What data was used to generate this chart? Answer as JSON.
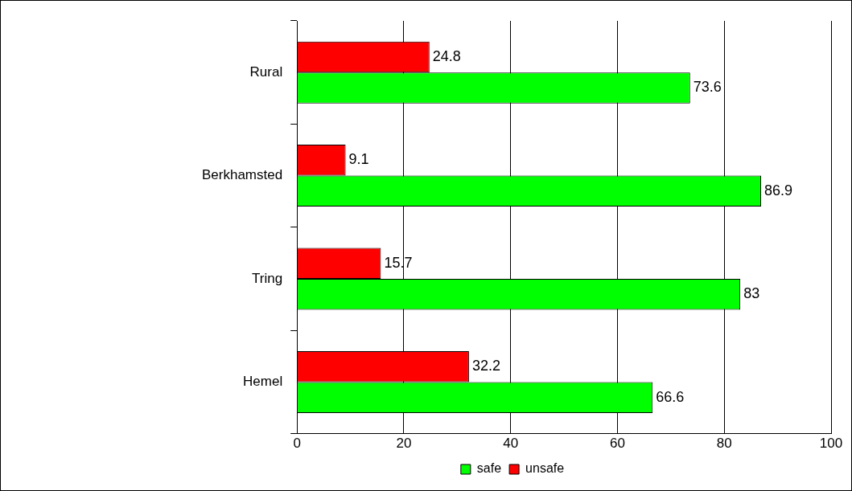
{
  "chart_data": {
    "type": "bar",
    "orientation": "horizontal",
    "categories": [
      "Rural",
      "Berkhamsted",
      "Tring",
      "Hemel"
    ],
    "series": [
      {
        "name": "safe",
        "color": "#00ff00",
        "values": [
          73.6,
          86.9,
          83,
          66.6
        ]
      },
      {
        "name": "unsafe",
        "color": "#ff0000",
        "values": [
          24.8,
          9.1,
          15.7,
          32.2
        ]
      }
    ],
    "xlim": [
      0,
      100
    ],
    "xticks": [
      0,
      20,
      40,
      60,
      80,
      100
    ],
    "grid": "x",
    "legend": "bottom",
    "data_labels": true
  }
}
